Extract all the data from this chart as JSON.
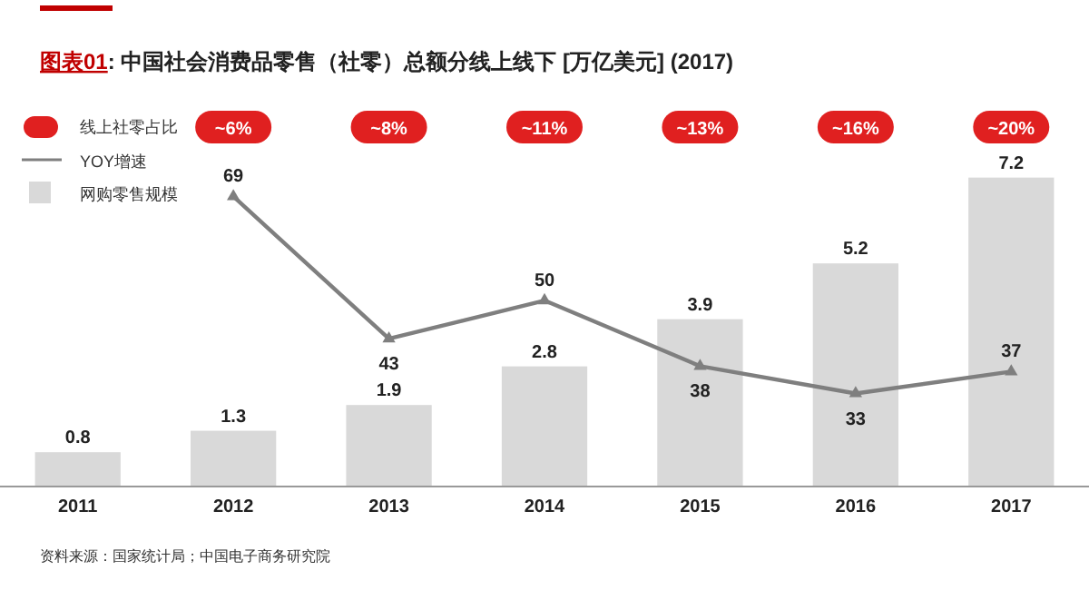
{
  "chart_data": {
    "type": "bar",
    "title": "图表01: 中国社会消费品零售（社零）总额分线上线下 [万亿美元] (2017)",
    "categories": [
      "2011",
      "2012",
      "2013",
      "2014",
      "2015",
      "2016",
      "2017"
    ],
    "series": [
      {
        "name": "YOY增速",
        "type": "line",
        "axis": "y2",
        "color": "#7f7f7f",
        "marker": "triangle",
        "values": [
          null,
          69,
          43,
          50,
          38,
          33,
          37
        ]
      },
      {
        "name": "网购零售规模",
        "color": "#d9d9d9",
        "values": [
          0.8,
          1.3,
          1.9,
          2.8,
          3.9,
          5.2,
          7.2
        ]
      }
    ],
    "ylim": [
      0,
      8.8
    ],
    "y2lim": [
      16,
      85
    ],
    "tick_labels": "x",
    "data_labels": true,
    "legend": "top left",
    "annotations": [
      "线上社零占比",
      {
        "text": "~6%",
        "x": "2012"
      },
      {
        "text": "~8%",
        "x": "2013"
      },
      {
        "text": "~11%",
        "x": "2014"
      },
      {
        "text": "~13%",
        "x": "2015"
      },
      {
        "text": "~16%",
        "x": "2016"
      },
      {
        "text": "~20%",
        "x": "2017"
      },
      "资料来源：国家统计局；中国电子商务研究院"
    ]
  }
}
